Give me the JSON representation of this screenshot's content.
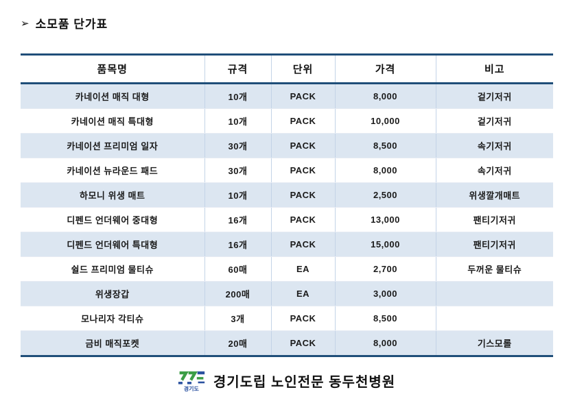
{
  "title": {
    "bullet": "➢",
    "text": "소모품 단가표"
  },
  "table": {
    "headers": [
      "품목명",
      "규격",
      "단위",
      "가격",
      "비고"
    ],
    "rows": [
      [
        "카네이션 매직 대형",
        "10개",
        "PACK",
        "8,000",
        "겉기저귀"
      ],
      [
        "카네이션 매직 특대형",
        "10개",
        "PACK",
        "10,000",
        "겉기저귀"
      ],
      [
        "카네이션 프리미엄 일자",
        "30개",
        "PACK",
        "8,500",
        "속기저귀"
      ],
      [
        "카네이션 뉴라운드 패드",
        "30개",
        "PACK",
        "8,000",
        "속기저귀"
      ],
      [
        "하모니 위생 매트",
        "10개",
        "PACK",
        "2,500",
        "위생깔개매트"
      ],
      [
        "디펜드 언더웨어 중대형",
        "16개",
        "PACK",
        "13,000",
        "팬티기저귀"
      ],
      [
        "디펜드 언더웨어 특대형",
        "16개",
        "PACK",
        "15,000",
        "팬티기저귀"
      ],
      [
        "쉴드 프리미엄 물티슈",
        "60매",
        "EA",
        "2,700",
        "두꺼운 물티슈"
      ],
      [
        "위생장갑",
        "200매",
        "EA",
        "3,000",
        ""
      ],
      [
        "모나리자 각티슈",
        "3개",
        "PACK",
        "8,500",
        ""
      ],
      [
        "금비 매직포켓",
        "20매",
        "PACK",
        "8,000",
        "기스모롤"
      ]
    ]
  },
  "footer": {
    "logo_text": "경기도",
    "org_name": "경기도립 노인전문 동두천병원"
  },
  "colors": {
    "border_navy": "#1F4E79",
    "row_blue": "#DCE6F1",
    "divider_blue": "#C3D3E7",
    "logo_green": "#3C9E46",
    "logo_blue": "#2B52A0",
    "text_black": "#111111"
  }
}
